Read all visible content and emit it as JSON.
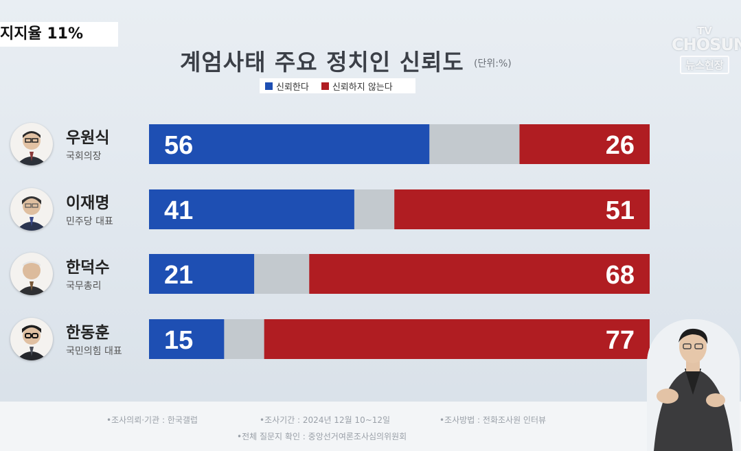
{
  "ticker": {
    "text": "지지율 11%"
  },
  "logo": {
    "line1": "TV",
    "line2": "CHOSUN",
    "line3": "뉴스현장"
  },
  "header": {
    "title": "계엄사태 주요 정치인 신뢰도",
    "unit": "(단위:%)"
  },
  "legend": {
    "trust": "신뢰한다",
    "distrust": "신뢰하지 않는다"
  },
  "colors": {
    "trust": "#1e4fb3",
    "neutral": "#c3c9ce",
    "distrust": "#b01d22"
  },
  "chart_data": {
    "type": "bar",
    "stacked": true,
    "orientation": "horizontal",
    "title": "계엄사태 주요 정치인 신뢰도",
    "unit": "(단위:%)",
    "categories": [
      "우원식",
      "이재명",
      "한덕수",
      "한동훈"
    ],
    "roles": [
      "국회의장",
      "민주당 대표",
      "국무총리",
      "국민의힘 대표"
    ],
    "series": [
      {
        "name": "신뢰한다",
        "values": [
          56,
          41,
          21,
          15
        ]
      },
      {
        "name": "신뢰하지 않는다",
        "values": [
          26,
          51,
          68,
          77
        ]
      }
    ],
    "xlim": [
      0,
      100
    ]
  },
  "footer": {
    "note1": "•조사의뢰·기관 : 한국갤럽",
    "note2": "•조사기간 : 2024년 12월 10~12일",
    "note3": "•조사방법 : 전화조사원 인터뷰",
    "note4": "•전체 질문지 확인 : 중앙선거여론조사심의위원회"
  }
}
